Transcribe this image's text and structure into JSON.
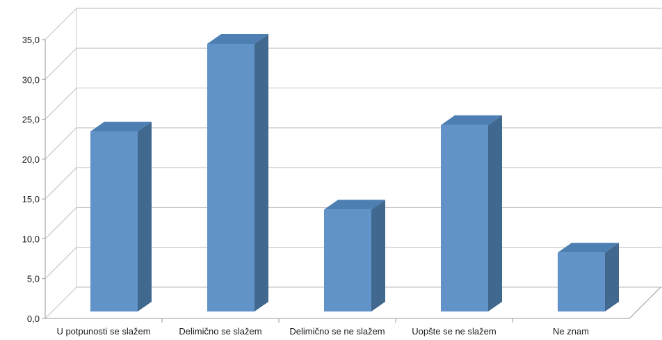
{
  "chart_data": {
    "type": "bar",
    "categories": [
      "U potpunosti se slažem",
      "Delimično se slažem",
      "Delimično se ne slažem",
      "Uopšte se ne slažem",
      "Ne znam"
    ],
    "values": [
      22.6,
      33.6,
      12.8,
      23.4,
      7.4
    ],
    "ylim": [
      0,
      35
    ],
    "yticks": [
      "0,0",
      "5,0",
      "10,0",
      "15,0",
      "20,0",
      "25,0",
      "30,0",
      "35,0"
    ],
    "grid": true,
    "legend": "none",
    "style": "3d-column",
    "colors": {
      "bar_front": "#6193c9",
      "bar_side": "#41698f",
      "bar_top": "#4d7fb3",
      "grid": "#c8c8c8",
      "axis": "#9a9a9a"
    }
  }
}
